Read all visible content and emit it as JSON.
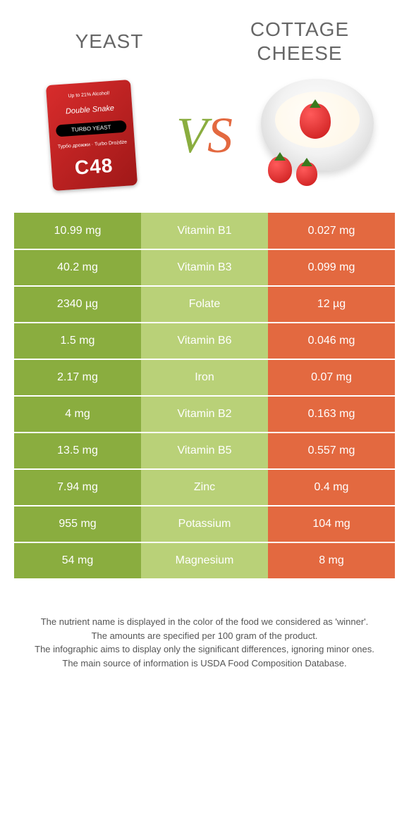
{
  "titles": {
    "left": "Yeast",
    "right": "Cottage cheese"
  },
  "vs": {
    "v": "V",
    "s": "S"
  },
  "colors": {
    "left_col": "#8aad3f",
    "mid_col": "#b9d178",
    "right_col": "#e36940",
    "title_color": "#666666",
    "footer_color": "#555555"
  },
  "product_left": {
    "top_banner": "Up to 21% Alcohol!",
    "brand": "Double Snake",
    "mid_band": "TURBO YEAST",
    "sub": "Турбо дрожжи · Turbo Drożdże",
    "code": "C48"
  },
  "rows": [
    {
      "left": "10.99 mg",
      "mid": "Vitamin B1",
      "right": "0.027 mg"
    },
    {
      "left": "40.2 mg",
      "mid": "Vitamin B3",
      "right": "0.099 mg"
    },
    {
      "left": "2340 µg",
      "mid": "Folate",
      "right": "12 µg"
    },
    {
      "left": "1.5 mg",
      "mid": "Vitamin B6",
      "right": "0.046 mg"
    },
    {
      "left": "2.17 mg",
      "mid": "Iron",
      "right": "0.07 mg"
    },
    {
      "left": "4 mg",
      "mid": "Vitamin B2",
      "right": "0.163 mg"
    },
    {
      "left": "13.5 mg",
      "mid": "Vitamin B5",
      "right": "0.557 mg"
    },
    {
      "left": "7.94 mg",
      "mid": "Zinc",
      "right": "0.4 mg"
    },
    {
      "left": "955 mg",
      "mid": "Potassium",
      "right": "104 mg"
    },
    {
      "left": "54 mg",
      "mid": "Magnesium",
      "right": "8 mg"
    }
  ],
  "footer_lines": [
    "The nutrient name is displayed in the color of the food we considered as 'winner'.",
    "The amounts are specified per 100 gram of the product.",
    "The infographic aims to display only the significant differences, ignoring minor ones.",
    "The main source of information is USDA Food Composition Database."
  ]
}
